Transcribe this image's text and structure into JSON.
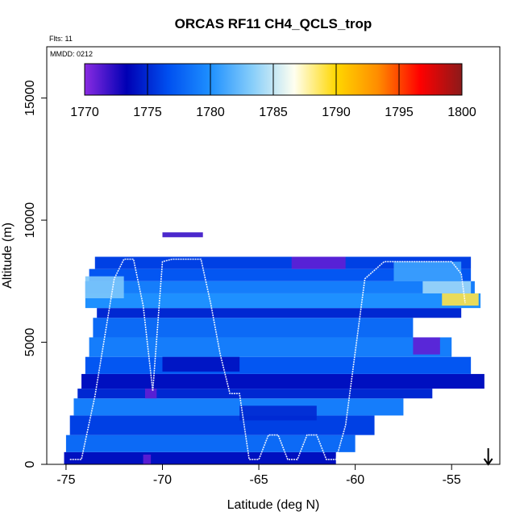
{
  "chart_data": {
    "type": "heatmap",
    "title": "ORCAS RF11 CH4_QCLS_trop",
    "xlabel": "Latitude (deg N)",
    "ylabel": "Altitude (m)",
    "xlim": [
      -76,
      -52.5
    ],
    "ylim": [
      0,
      17100
    ],
    "x_ticks": [
      -75,
      -70,
      -65,
      -60,
      -55
    ],
    "x_tick_labels": [
      "-75",
      "-70",
      "-65",
      "-60",
      "-55"
    ],
    "y_ticks": [
      0,
      5000,
      10000,
      15000
    ],
    "y_tick_labels": [
      "0",
      "5000",
      "10000",
      "15000"
    ],
    "flights_note": "Flts: 11",
    "date_note": "MMDD: 0212",
    "colorbar": {
      "min": 1770,
      "max": 1800,
      "ticks": [
        1770,
        1775,
        1780,
        1785,
        1790,
        1795,
        1800
      ],
      "tick_labels": [
        "1770",
        "1775",
        "1780",
        "1785",
        "1790",
        "1795",
        "1800"
      ],
      "colors": [
        "#8a2be2",
        "#0000b4",
        "#0050f0",
        "#1e90ff",
        "#87cefa",
        "#fffff0",
        "#ffd700",
        "#ff8c00",
        "#ff0000",
        "#8b1a1a"
      ]
    },
    "marker": {
      "label": "arrow",
      "lat": -53.1
    },
    "bands": [
      {
        "alt_min": 0,
        "alt_max": 500,
        "lat_min": -75.1,
        "lat_max": -61.0,
        "value": 1774
      },
      {
        "alt_min": 500,
        "alt_max": 1200,
        "lat_min": -75.0,
        "lat_max": -60.0,
        "value": 1778
      },
      {
        "alt_min": 1200,
        "alt_max": 2000,
        "lat_min": -74.8,
        "lat_max": -59.0,
        "value": 1776
      },
      {
        "alt_min": 2000,
        "alt_max": 2700,
        "lat_min": -74.6,
        "lat_max": -57.5,
        "value": 1779
      },
      {
        "alt_min": 2700,
        "alt_max": 3100,
        "lat_min": -74.4,
        "lat_max": -56.0,
        "value": 1775
      },
      {
        "alt_min": 3100,
        "alt_max": 3700,
        "lat_min": -74.2,
        "lat_max": -53.3,
        "value": 1774
      },
      {
        "alt_min": 3700,
        "alt_max": 4400,
        "lat_min": -74.0,
        "lat_max": -54.0,
        "value": 1777
      },
      {
        "alt_min": 4400,
        "alt_max": 5200,
        "lat_min": -73.8,
        "lat_max": -55.0,
        "value": 1779
      },
      {
        "alt_min": 5200,
        "alt_max": 6000,
        "lat_min": -73.6,
        "lat_max": -57.0,
        "value": 1778
      },
      {
        "alt_min": 6000,
        "alt_max": 6400,
        "lat_min": -73.4,
        "lat_max": -54.5,
        "value": 1775
      },
      {
        "alt_min": 6400,
        "alt_max": 7000,
        "lat_min": -74.0,
        "lat_max": -53.5,
        "value": 1780
      },
      {
        "alt_min": 7000,
        "alt_max": 7500,
        "lat_min": -74.0,
        "lat_max": -53.8,
        "value": 1779
      },
      {
        "alt_min": 7500,
        "alt_max": 8000,
        "lat_min": -73.8,
        "lat_max": -54.0,
        "value": 1777
      },
      {
        "alt_min": 8000,
        "alt_max": 8500,
        "lat_min": -73.5,
        "lat_max": -54.0,
        "value": 1776
      }
    ],
    "patches": [
      {
        "alt_min": 6500,
        "alt_max": 7000,
        "lat_min": -55.5,
        "lat_max": -53.6,
        "value": 1789
      },
      {
        "alt_min": 7000,
        "alt_max": 7500,
        "lat_min": -56.5,
        "lat_max": -54.0,
        "value": 1784
      },
      {
        "alt_min": 7500,
        "alt_max": 8300,
        "lat_min": -58.0,
        "lat_max": -54.5,
        "value": 1781
      },
      {
        "alt_min": 6800,
        "alt_max": 7700,
        "lat_min": -74.0,
        "lat_max": -72.0,
        "value": 1783
      },
      {
        "alt_min": 2700,
        "alt_max": 3100,
        "lat_min": -70.9,
        "lat_max": -70.3,
        "value": 1771
      },
      {
        "alt_min": 8000,
        "alt_max": 8500,
        "lat_min": -63.3,
        "lat_max": -60.5,
        "value": 1771
      },
      {
        "alt_min": 4500,
        "alt_max": 5200,
        "lat_min": -57.0,
        "lat_max": -55.6,
        "value": 1771
      },
      {
        "alt_min": 0,
        "alt_max": 400,
        "lat_min": -71.0,
        "lat_max": -70.6,
        "value": 1771
      },
      {
        "alt_min": 9300,
        "alt_max": 9500,
        "lat_min": -70.0,
        "lat_max": -67.9,
        "value": 1772
      },
      {
        "alt_min": 3800,
        "alt_max": 4400,
        "lat_min": -70.0,
        "lat_max": -66.0,
        "value": 1774
      },
      {
        "alt_min": 1800,
        "alt_max": 2400,
        "lat_min": -66.0,
        "lat_max": -62.0,
        "value": 1775
      }
    ],
    "flight_tracks": [
      {
        "lat": [
          -74.8,
          -74.2,
          -73.5,
          -72.5,
          -72.0,
          -71.5,
          -71.0,
          -70.5,
          -70.0,
          -69.5,
          -69.0,
          -68.0,
          -67.5,
          -67.0,
          -66.5,
          -66.0,
          -65.5,
          -65.0,
          -64.5,
          -64.0,
          -63.5,
          -63.0,
          -62.5,
          -62.0,
          -61.5,
          -61.0,
          -60.5,
          -59.5,
          -58.5,
          -57.0,
          -55.0,
          -54.5,
          -54.3
        ],
        "alt": [
          200,
          200,
          2800,
          7600,
          8400,
          8400,
          6500,
          3000,
          8300,
          8400,
          8400,
          8400,
          6600,
          4500,
          2900,
          2900,
          200,
          200,
          1200,
          1200,
          200,
          200,
          1200,
          1200,
          200,
          200,
          1600,
          7600,
          8300,
          8300,
          8300,
          7800,
          6600
        ]
      }
    ]
  }
}
